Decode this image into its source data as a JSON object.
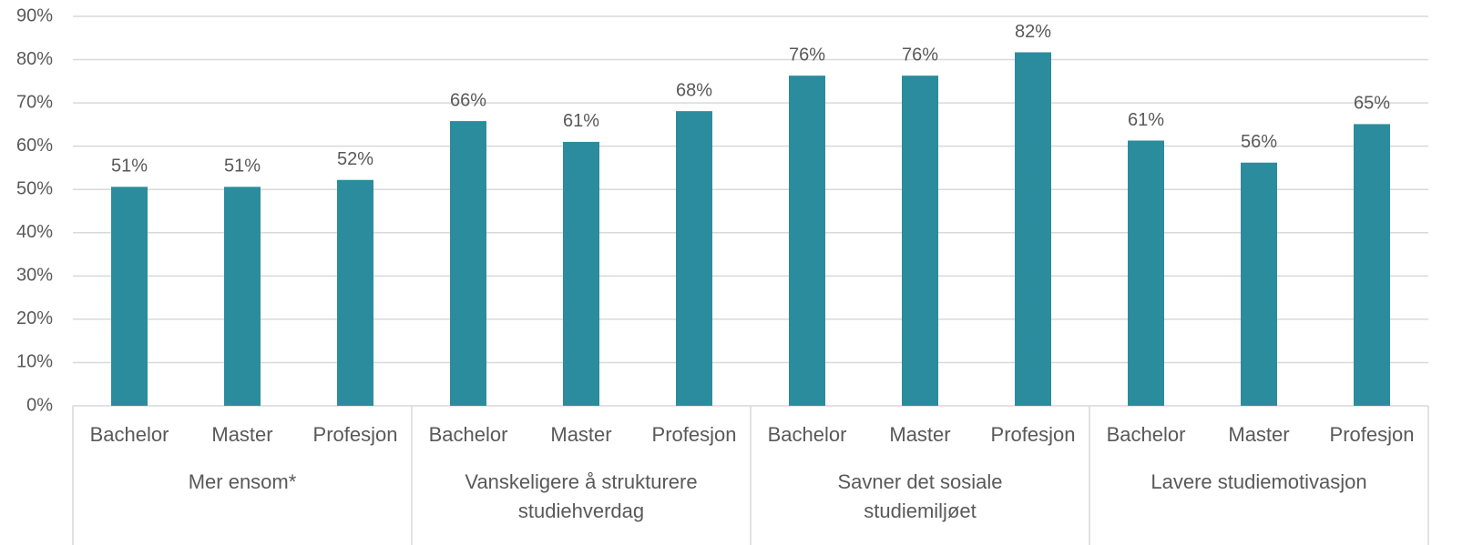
{
  "chart_data": {
    "type": "bar",
    "categories": [
      "Bachelor",
      "Master",
      "Profesjon",
      "Bachelor",
      "Master",
      "Profesjon",
      "Bachelor",
      "Master",
      "Profesjon",
      "Bachelor",
      "Master",
      "Profesjon"
    ],
    "groups": [
      "Mer ensom*",
      "Vanskeligere å strukturere studiehverdag",
      "Savner det sosiale studiemiljøet",
      "Lavere studiemotivasjon"
    ],
    "values": [
      50.6,
      50.6,
      52.2,
      65.8,
      61.0,
      68.1,
      76.3,
      76.3,
      81.7,
      61.3,
      56.2,
      65.1
    ],
    "value_labels": [
      "51%",
      "51%",
      "52%",
      "66%",
      "61%",
      "68%",
      "76%",
      "76%",
      "82%",
      "61%",
      "56%",
      "65%"
    ],
    "color": "#2b8c9d",
    "ylim": [
      0,
      90
    ],
    "yticks": [
      {
        "value": 0,
        "label": "0%"
      },
      {
        "value": 10,
        "label": "10%"
      },
      {
        "value": 20,
        "label": "20%"
      },
      {
        "value": 30,
        "label": "30%"
      },
      {
        "value": 40,
        "label": "40%"
      },
      {
        "value": 50,
        "label": "50%"
      },
      {
        "value": 60,
        "label": "60%"
      },
      {
        "value": 70,
        "label": "70%"
      },
      {
        "value": 80,
        "label": "80%"
      },
      {
        "value": 90,
        "label": "90%"
      }
    ],
    "grid": true
  }
}
